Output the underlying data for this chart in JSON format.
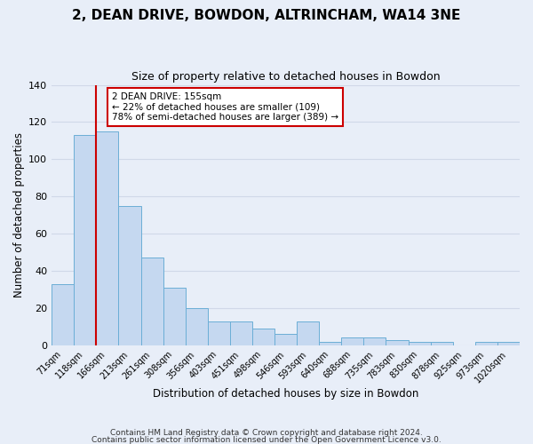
{
  "title": "2, DEAN DRIVE, BOWDON, ALTRINCHAM, WA14 3NE",
  "subtitle": "Size of property relative to detached houses in Bowdon",
  "xlabel": "Distribution of detached houses by size in Bowdon",
  "ylabel": "Number of detached properties",
  "bar_labels": [
    "71sqm",
    "118sqm",
    "166sqm",
    "213sqm",
    "261sqm",
    "308sqm",
    "356sqm",
    "403sqm",
    "451sqm",
    "498sqm",
    "546sqm",
    "593sqm",
    "640sqm",
    "688sqm",
    "735sqm",
    "783sqm",
    "830sqm",
    "878sqm",
    "925sqm",
    "973sqm",
    "1020sqm"
  ],
  "bar_values": [
    33,
    113,
    115,
    75,
    47,
    31,
    20,
    13,
    13,
    9,
    6,
    13,
    2,
    4,
    4,
    3,
    2,
    2,
    0,
    2,
    2
  ],
  "bar_color": "#c5d8f0",
  "bar_edge_color": "#6baed6",
  "background_color": "#e8eef8",
  "grid_color": "#d0d8e8",
  "vline_color": "#cc0000",
  "vline_position": 1.5,
  "annotation_text": "2 DEAN DRIVE: 155sqm\n← 22% of detached houses are smaller (109)\n78% of semi-detached houses are larger (389) →",
  "annotation_box_color": "#ffffff",
  "annotation_box_edge": "#cc0000",
  "ylim": [
    0,
    140
  ],
  "yticks": [
    0,
    20,
    40,
    60,
    80,
    100,
    120,
    140
  ],
  "footer1": "Contains HM Land Registry data © Crown copyright and database right 2024.",
  "footer2": "Contains public sector information licensed under the Open Government Licence v3.0."
}
